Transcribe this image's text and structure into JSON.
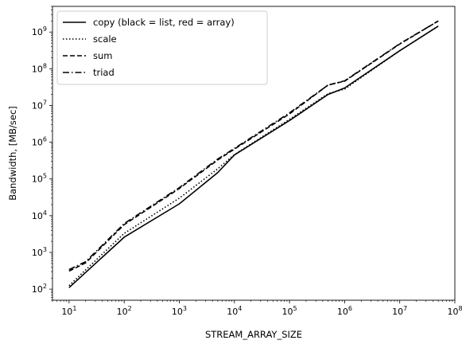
{
  "chart_data": {
    "type": "line",
    "xscale": "log",
    "yscale": "log",
    "xlabel": "STREAM_ARRAY_SIZE",
    "ylabel": "Bandwidth, [MB/sec]",
    "xlim": [
      5,
      100000000
    ],
    "ylim": [
      50,
      5000000000
    ],
    "xticks": [
      {
        "value": 10,
        "base": "10",
        "exp": "1"
      },
      {
        "value": 100,
        "base": "10",
        "exp": "2"
      },
      {
        "value": 1000,
        "base": "10",
        "exp": "3"
      },
      {
        "value": 10000,
        "base": "10",
        "exp": "4"
      },
      {
        "value": 100000,
        "base": "10",
        "exp": "5"
      },
      {
        "value": 1000000,
        "base": "10",
        "exp": "6"
      },
      {
        "value": 10000000,
        "base": "10",
        "exp": "7"
      },
      {
        "value": 100000000,
        "base": "10",
        "exp": "8"
      }
    ],
    "yticks": [
      {
        "value": 100,
        "base": "10",
        "exp": "2"
      },
      {
        "value": 1000,
        "base": "10",
        "exp": "3"
      },
      {
        "value": 10000,
        "base": "10",
        "exp": "4"
      },
      {
        "value": 100000,
        "base": "10",
        "exp": "5"
      },
      {
        "value": 1000000,
        "base": "10",
        "exp": "6"
      },
      {
        "value": 10000000,
        "base": "10",
        "exp": "7"
      },
      {
        "value": 100000000,
        "base": "10",
        "exp": "8"
      },
      {
        "value": 1000000000,
        "base": "10",
        "exp": "9"
      }
    ],
    "grid": false,
    "legend_position": "top-left",
    "series": [
      {
        "name": "copy (black = list, red = array)",
        "style": "solid",
        "color": "#000000",
        "x": [
          10,
          100,
          1000,
          5000,
          10000,
          100000,
          500000,
          1000000,
          10000000,
          50000000
        ],
        "y": [
          110,
          2600,
          21000,
          150000,
          450000,
          3900000,
          20000000,
          30000000,
          310000000,
          1450000000
        ]
      },
      {
        "name": "scale",
        "style": "dotted",
        "color": "#000000",
        "x": [
          10,
          100,
          1000,
          5000,
          10000,
          100000,
          500000,
          1000000,
          10000000,
          50000000
        ],
        "y": [
          125,
          3300,
          30000,
          190000,
          460000,
          4200000,
          21000000,
          28000000,
          310000000,
          1450000000
        ]
      },
      {
        "name": "sum",
        "style": "dashed",
        "color": "#000000",
        "x": [
          10,
          20,
          100,
          1000,
          5000,
          10000,
          100000,
          500000,
          1000000,
          10000000,
          50000000
        ],
        "y": [
          310,
          520,
          5700,
          55000,
          330000,
          650000,
          5900000,
          36000000,
          46000000,
          470000000,
          2000000000
        ]
      },
      {
        "name": "triad",
        "style": "dashdot",
        "color": "#000000",
        "x": [
          10,
          20,
          100,
          1000,
          5000,
          10000,
          100000,
          500000,
          1000000,
          10000000,
          50000000
        ],
        "y": [
          340,
          560,
          6100,
          58000,
          350000,
          680000,
          6300000,
          36000000,
          47000000,
          480000000,
          2000000000
        ]
      }
    ]
  }
}
